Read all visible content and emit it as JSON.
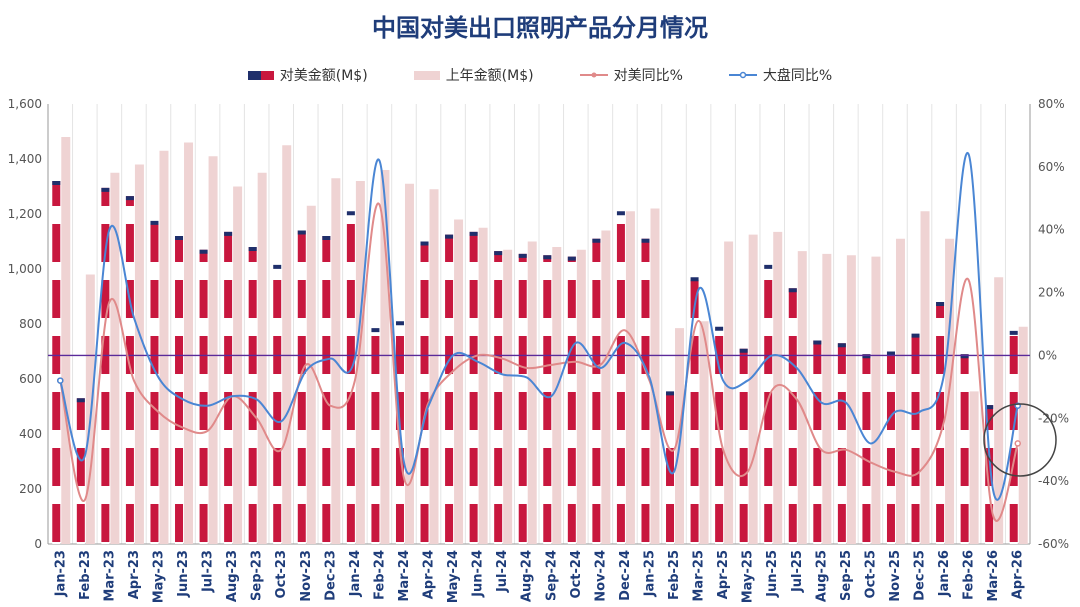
{
  "title": "中国对美出口照明产品分月情况",
  "legend": [
    {
      "label": "对美金额(M$)"
    },
    {
      "label": "上年金额(M$)"
    },
    {
      "label": "对美同比%"
    },
    {
      "label": "大盘同比%"
    }
  ],
  "colors": {
    "us_bar": "#c8173e",
    "us_bar_top": "#1f2f6b",
    "prev_bar": "#efd3d3",
    "us_yoy_line": "#e08a8a",
    "market_yoy_line": "#4a86d4",
    "zero_line": "#5a2a9a",
    "title": "#1f3d7a"
  },
  "chart_data": {
    "type": "bar",
    "title": "中国对美出口照明产品分月情况",
    "categories": [
      "Jan-23",
      "Feb-23",
      "Mar-23",
      "Apr-23",
      "May-23",
      "Jun-23",
      "Jul-23",
      "Aug-23",
      "Sep-23",
      "Oct-23",
      "Nov-23",
      "Dec-23",
      "Jan-24",
      "Feb-24",
      "Mar-24",
      "Apr-24",
      "May-24",
      "Jun-24",
      "Jul-24",
      "Aug-24",
      "Sep-24",
      "Oct-24",
      "Nov-24",
      "Dec-24",
      "Jan-25",
      "Feb-25",
      "Mar-25",
      "Apr-25",
      "May-25",
      "Jun-25",
      "Jul-25",
      "Aug-25",
      "Sep-25",
      "Oct-25",
      "Nov-25",
      "Dec-25",
      "Jan-26",
      "Feb-26",
      "Mar-26",
      "Apr-26"
    ],
    "left_axis": {
      "ylim": [
        0,
        1600
      ],
      "ticks": [
        "0",
        "200",
        "400",
        "600",
        "800",
        "1,000",
        "1,200",
        "1,400",
        "1,600"
      ]
    },
    "right_axis": {
      "ylim": [
        -60,
        80
      ],
      "ticks": [
        "-60%",
        "-40%",
        "-20%",
        "0%",
        "20%",
        "40%",
        "60%",
        "80%"
      ]
    },
    "series": [
      {
        "name": "对美金额(M$)",
        "axis": "left",
        "kind": "bar",
        "values": [
          1320,
          530,
          1295,
          1265,
          1175,
          1120,
          1070,
          1135,
          1080,
          1015,
          1140,
          1120,
          1210,
          785,
          810,
          1100,
          1125,
          1135,
          1065,
          1055,
          1050,
          1045,
          1110,
          1210,
          1110,
          555,
          970,
          790,
          710,
          1015,
          930,
          740,
          730,
          690,
          700,
          765,
          880,
          690,
          505,
          775
        ]
      },
      {
        "name": "上年金额(M$)",
        "axis": "left",
        "kind": "bar",
        "values": [
          1480,
          980,
          1350,
          1380,
          1430,
          1460,
          1410,
          1300,
          1350,
          1450,
          1230,
          1330,
          1320,
          1360,
          1310,
          1290,
          1180,
          1150,
          1070,
          1100,
          1080,
          1070,
          1140,
          1210,
          1220,
          785,
          810,
          1100,
          1125,
          1135,
          1065,
          1055,
          1050,
          1045,
          1110,
          1210,
          1110,
          555,
          970,
          790
        ]
      },
      {
        "name": "对美同比%",
        "axis": "right",
        "kind": "line",
        "values": [
          -8,
          -46,
          17,
          -8,
          -18,
          -23,
          -24,
          -13,
          -20,
          -30,
          -3,
          -16,
          -8,
          48,
          -39,
          -15,
          -5,
          0,
          -1,
          -4,
          -3,
          -2,
          -3,
          8,
          -8,
          -30,
          11,
          -30,
          -37,
          -11,
          -14,
          -30,
          -30,
          -34,
          -37,
          -37,
          -21,
          24,
          -51,
          -28
        ]
      },
      {
        "name": "大盘同比%",
        "axis": "right",
        "kind": "line",
        "values": [
          -8,
          -32,
          40,
          12,
          -7,
          -14,
          -16,
          -13,
          -14,
          -21,
          -5,
          -1,
          -1,
          62,
          -34,
          -16,
          0,
          -2,
          -6,
          -7,
          -13,
          4,
          -4,
          4,
          -7,
          -37,
          21,
          -8,
          -8,
          0,
          -4,
          -15,
          -15,
          -28,
          -18,
          -18,
          -6,
          64,
          -43,
          -16
        ]
      }
    ],
    "grid": "vertical"
  }
}
